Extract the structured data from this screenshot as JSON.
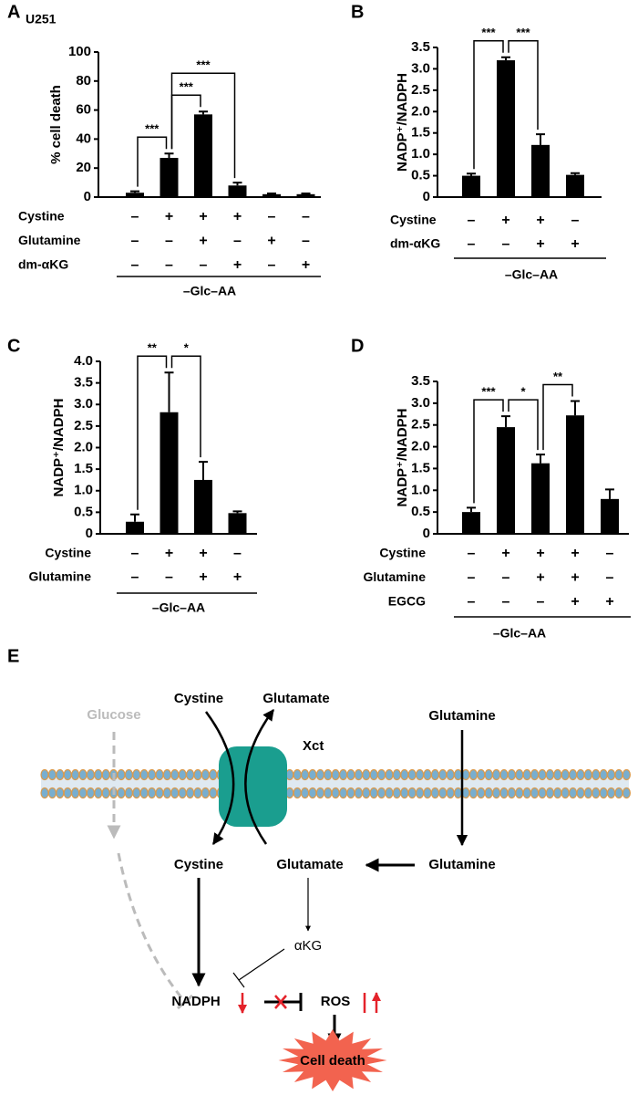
{
  "chart_data": [
    {
      "type": "bar",
      "panel": "A",
      "subtitle": "U251",
      "ylabel": "% cell death",
      "values": [
        3,
        27,
        57,
        8,
        2,
        2
      ],
      "errors": [
        1,
        3,
        2,
        2,
        0.5,
        0.5
      ],
      "color": "#000000",
      "ylim": [
        0,
        100
      ],
      "yticks": [
        0,
        20,
        40,
        60,
        80,
        100
      ],
      "conditions": [
        {
          "name": "Cystine",
          "signs": [
            "–",
            "+",
            "+",
            "+",
            "–",
            "–"
          ]
        },
        {
          "name": "Glutamine",
          "signs": [
            "–",
            "–",
            "+",
            "–",
            "+",
            "–"
          ]
        },
        {
          "name": "dm-αKG",
          "signs": [
            "–",
            "–",
            "–",
            "+",
            "–",
            "+"
          ]
        }
      ],
      "group_label": "–Glc–AA",
      "significance": [
        {
          "pair": [
            0,
            1
          ],
          "label": "***"
        },
        {
          "pair": [
            1,
            2
          ],
          "label": "***"
        },
        {
          "pair": [
            1,
            3
          ],
          "label": "***"
        }
      ]
    },
    {
      "type": "bar",
      "panel": "B",
      "ylabel": "NADP⁺/NADPH",
      "values": [
        0.5,
        3.2,
        1.22,
        0.52
      ],
      "errors": [
        0.05,
        0.07,
        0.25,
        0.04
      ],
      "color": "#000000",
      "ylim": [
        0,
        3.5
      ],
      "yticks": [
        0,
        0.5,
        {
          "value": 1,
          "label": "1.0"
        },
        1.5,
        {
          "value": 2,
          "label": "2.0"
        },
        2.5,
        {
          "value": 3,
          "label": "3.0"
        },
        3.5
      ],
      "conditions": [
        {
          "name": "Cystine",
          "signs": [
            "–",
            "+",
            "+",
            "–"
          ]
        },
        {
          "name": "dm-αKG",
          "signs": [
            "–",
            "–",
            "+",
            "+"
          ]
        }
      ],
      "group_label": "–Glc–AA",
      "significance": [
        {
          "pair": [
            0,
            1
          ],
          "label": "***"
        },
        {
          "pair": [
            1,
            2
          ],
          "label": "***"
        }
      ]
    },
    {
      "type": "bar",
      "panel": "C",
      "ylabel": "NADP⁺/NADPH",
      "values": [
        0.28,
        2.82,
        1.25,
        0.48
      ],
      "errors": [
        0.17,
        0.92,
        0.42,
        0.04
      ],
      "color": "#000000",
      "ylim": [
        0,
        4
      ],
      "yticks": [
        0,
        0.5,
        {
          "value": 1,
          "label": "1.0"
        },
        1.5,
        {
          "value": 2,
          "label": "2.0"
        },
        2.5,
        {
          "value": 3,
          "label": "3.0"
        },
        3.5,
        {
          "value": 4,
          "label": "4.0"
        }
      ],
      "conditions": [
        {
          "name": "Cystine",
          "signs": [
            "–",
            "+",
            "+",
            "–"
          ]
        },
        {
          "name": "Glutamine",
          "signs": [
            "–",
            "–",
            "+",
            "+"
          ]
        }
      ],
      "group_label": "–Glc–AA",
      "significance": [
        {
          "pair": [
            0,
            1
          ],
          "label": "**"
        },
        {
          "pair": [
            1,
            2
          ],
          "label": "*"
        }
      ]
    },
    {
      "type": "bar",
      "panel": "D",
      "ylabel": "NADP⁺/NADPH",
      "values": [
        0.5,
        2.45,
        1.62,
        2.72,
        0.8
      ],
      "errors": [
        0.1,
        0.25,
        0.2,
        0.33,
        0.22
      ],
      "color": "#000000",
      "ylim": [
        0,
        3.5
      ],
      "yticks": [
        0,
        0.5,
        {
          "value": 1,
          "label": "1.0"
        },
        1.5,
        {
          "value": 2,
          "label": "2.0"
        },
        2.5,
        {
          "value": 3,
          "label": "3.0"
        },
        3.5
      ],
      "conditions": [
        {
          "name": "Cystine",
          "signs": [
            "–",
            "+",
            "+",
            "+",
            "–"
          ]
        },
        {
          "name": "Glutamine",
          "signs": [
            "–",
            "–",
            "+",
            "+",
            "–"
          ]
        },
        {
          "name": "EGCG",
          "signs": [
            "–",
            "–",
            "–",
            "+",
            "+"
          ]
        }
      ],
      "group_label": "–Glc–AA",
      "significance": [
        {
          "pair": [
            0,
            1
          ],
          "label": "***"
        },
        {
          "pair": [
            1,
            2
          ],
          "label": "*"
        },
        {
          "pair": [
            2,
            3
          ],
          "label": "**"
        }
      ]
    }
  ],
  "diagram": {
    "panel": "E",
    "glucose": "Glucose",
    "cystine_out": "Cystine",
    "glutamate_out": "Glutamate",
    "transporter": "Xct",
    "glutamine_out": "Glutamine",
    "cystine_in": "Cystine",
    "glutamate_in": "Glutamate",
    "glutamine_in": "Glutamine",
    "akg": "αKG",
    "nadph": "NADPH",
    "ros": "ROS",
    "outcome": "Cell death"
  }
}
